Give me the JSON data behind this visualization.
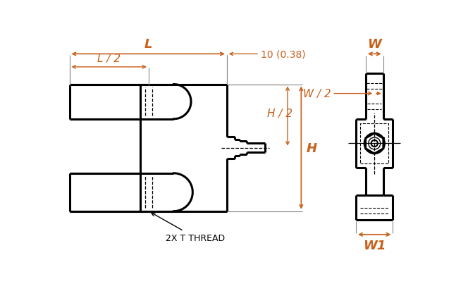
{
  "bg_color": "#ffffff",
  "line_color": "#000000",
  "dim_color": "#c8601a",
  "fig_width": 6.64,
  "fig_height": 4.14,
  "dpi": 100,
  "annotations": {
    "L_label": "L",
    "L2_label": "L / 2",
    "H_label": "H",
    "H2_label": "H / 2",
    "dim_10": "10 (0.38)",
    "thread_label": "2X T THREAD",
    "W_label": "W",
    "W2_label": "W / 2",
    "W1_label": "W1"
  }
}
